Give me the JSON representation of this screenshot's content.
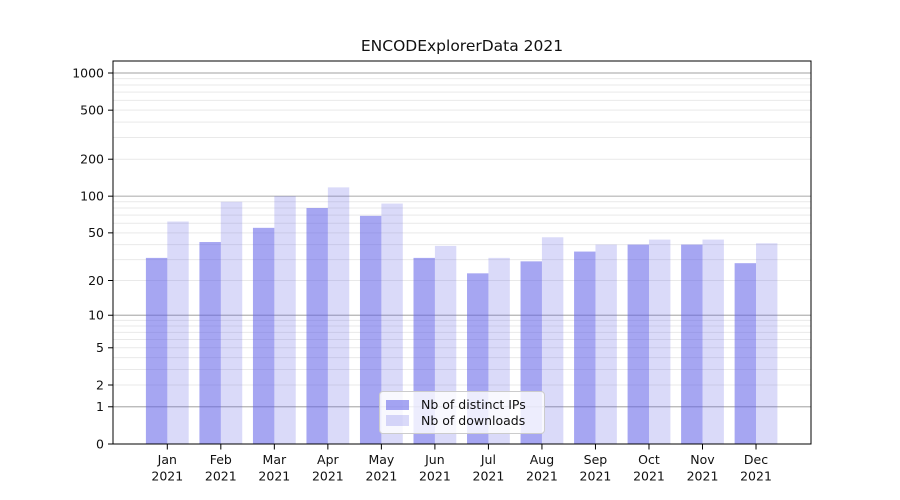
{
  "chart_data": {
    "type": "bar",
    "title": "ENCODExplorerData 2021",
    "categories": [
      {
        "month": "Jan",
        "year": "2021"
      },
      {
        "month": "Feb",
        "year": "2021"
      },
      {
        "month": "Mar",
        "year": "2021"
      },
      {
        "month": "Apr",
        "year": "2021"
      },
      {
        "month": "May",
        "year": "2021"
      },
      {
        "month": "Jun",
        "year": "2021"
      },
      {
        "month": "Jul",
        "year": "2021"
      },
      {
        "month": "Aug",
        "year": "2021"
      },
      {
        "month": "Sep",
        "year": "2021"
      },
      {
        "month": "Oct",
        "year": "2021"
      },
      {
        "month": "Nov",
        "year": "2021"
      },
      {
        "month": "Dec",
        "year": "2021"
      }
    ],
    "series": [
      {
        "name": "Nb of distinct IPs",
        "color": "rgba(93,93,231,0.55)",
        "values": [
          31,
          42,
          55,
          80,
          69,
          31,
          23,
          29,
          35,
          40,
          40,
          28
        ]
      },
      {
        "name": "Nb of downloads",
        "color": "rgba(93,93,231,0.23)",
        "values": [
          62,
          90,
          100,
          118,
          87,
          39,
          31,
          46,
          40,
          44,
          44,
          41
        ]
      }
    ],
    "yscale": "symlog (log1p)",
    "yticks": [
      0,
      1,
      2,
      5,
      10,
      20,
      50,
      100,
      200,
      500,
      1000
    ],
    "ylim": [
      0,
      1250
    ],
    "grid": {
      "on": true,
      "major_color": "#b3b3b3",
      "minor_color": "#e9e9e9",
      "major_at": [
        1,
        10,
        100,
        1000
      ]
    },
    "legend_position": "lower center inside plot",
    "spine_color": "#000000"
  }
}
